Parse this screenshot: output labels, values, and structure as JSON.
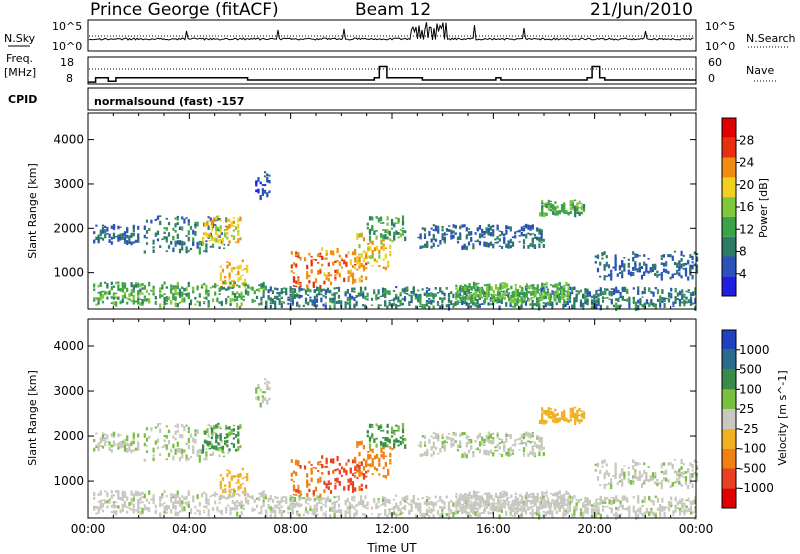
{
  "header": {
    "station": "Prince George (fitACF)",
    "beam": "Beam 12",
    "date": "21/Jun/2010"
  },
  "strip_nsky": {
    "left_label": "N.Sky",
    "right_label": "N.Search",
    "left_ticks": [
      "10^5",
      "10^0"
    ],
    "right_ticks": [
      "10^5",
      "10^0"
    ]
  },
  "strip_freq": {
    "left_label_1": "Freq.",
    "left_label_2": "[MHz]",
    "right_label": "Nave",
    "left_ticks": [
      "18",
      "8"
    ],
    "right_ticks": [
      "60",
      "0"
    ]
  },
  "cpid": {
    "label": "CPID",
    "program": "normalsound (fast) -157"
  },
  "panels": {
    "ylabel": "Slant Range [km]",
    "y_ticks": [
      "4000",
      "3000",
      "2000",
      "1000"
    ],
    "x_ticks": [
      "00:00",
      "04:00",
      "08:00",
      "12:00",
      "16:00",
      "20:00",
      "00:00"
    ],
    "xlabel": "Time UT"
  },
  "power_bar": {
    "label": "Power [dB]",
    "ticks": [
      "28",
      "24",
      "20",
      "16",
      "12",
      "8",
      "4"
    ],
    "colors": [
      "#1f1fe0",
      "#2a52b8",
      "#2d7a66",
      "#3aa348",
      "#7ec83c",
      "#f0d020",
      "#f08c10",
      "#e83010",
      "#e00000"
    ]
  },
  "velocity_bar": {
    "label": "Velocity [m s^-1]",
    "ticks": [
      "1000",
      "500",
      "100",
      "25",
      "-25",
      "-100",
      "-500",
      "-1000"
    ],
    "colors": [
      "#2040c0",
      "#2a6a8a",
      "#3a8a4a",
      "#7ac040",
      "#c8c8c0",
      "#f0b020",
      "#f08010",
      "#e84020",
      "#e00000"
    ]
  },
  "chart_data": {
    "type": "heatmap",
    "xlabel": "Time UT",
    "ylabel": "Slant Range [km]",
    "x_range_hours": [
      0,
      24
    ],
    "y_range_km": [
      180,
      4600
    ],
    "freq_mhz_steps": [
      {
        "t": 0.0,
        "v": 8.7
      },
      {
        "t": 0.3,
        "v": 10.3
      },
      {
        "t": 0.8,
        "v": 9.0
      },
      {
        "t": 1.1,
        "v": 10.3
      },
      {
        "t": 6.3,
        "v": 9.5
      },
      {
        "t": 11.3,
        "v": 10.3
      },
      {
        "t": 11.5,
        "v": 14.5
      },
      {
        "t": 11.8,
        "v": 10.3
      },
      {
        "t": 13.2,
        "v": 9.5
      },
      {
        "t": 16.1,
        "v": 10.3
      },
      {
        "t": 16.3,
        "v": 9.5
      },
      {
        "t": 19.7,
        "v": 10.3
      },
      {
        "t": 19.9,
        "v": 14.5
      },
      {
        "t": 20.2,
        "v": 10.3
      },
      {
        "t": 20.4,
        "v": 9.5
      },
      {
        "t": 24.0,
        "v": 9.5
      }
    ],
    "echo_regions": [
      {
        "t0": 0.2,
        "t1": 2.0,
        "r0": 1700,
        "r1": 2100,
        "power_db": 8,
        "velocity": 20
      },
      {
        "t0": 2.2,
        "t1": 5.5,
        "r0": 1500,
        "r1": 2300,
        "power_db": 10,
        "velocity": 20
      },
      {
        "t0": 4.5,
        "t1": 6.0,
        "r0": 1700,
        "r1": 2300,
        "power_db": 22,
        "velocity": 120
      },
      {
        "t0": 5.2,
        "t1": 6.3,
        "r0": 700,
        "r1": 1300,
        "power_db": 24,
        "velocity": -60
      },
      {
        "t0": 0.2,
        "t1": 7.0,
        "r0": 300,
        "r1": 800,
        "power_db": 14,
        "velocity": 10
      },
      {
        "t0": 6.6,
        "t1": 7.2,
        "r0": 2700,
        "r1": 3300,
        "power_db": 6,
        "velocity": 10
      },
      {
        "t0": 8.0,
        "t1": 9.2,
        "r0": 700,
        "r1": 1500,
        "power_db": 28,
        "velocity": -400
      },
      {
        "t0": 9.2,
        "t1": 11.0,
        "r0": 800,
        "r1": 1600,
        "power_db": 26,
        "velocity": -700
      },
      {
        "t0": 10.5,
        "t1": 12.0,
        "r0": 1100,
        "r1": 1900,
        "power_db": 22,
        "velocity": -300
      },
      {
        "t0": 11.0,
        "t1": 12.5,
        "r0": 1800,
        "r1": 2300,
        "power_db": 14,
        "velocity": 110
      },
      {
        "t0": 7.0,
        "t1": 24.0,
        "r0": 250,
        "r1": 700,
        "power_db": 10,
        "velocity": 10
      },
      {
        "t0": 13.0,
        "t1": 18.0,
        "r0": 1600,
        "r1": 2100,
        "power_db": 8,
        "velocity": 15
      },
      {
        "t0": 17.8,
        "t1": 19.6,
        "r0": 2350,
        "r1": 2650,
        "power_db": 14,
        "velocity": -60
      },
      {
        "t0": 14.5,
        "t1": 19.0,
        "r0": 400,
        "r1": 800,
        "power_db": 16,
        "velocity": 0
      },
      {
        "t0": 20.0,
        "t1": 24.0,
        "r0": 900,
        "r1": 1500,
        "power_db": 8,
        "velocity": 15
      }
    ]
  }
}
